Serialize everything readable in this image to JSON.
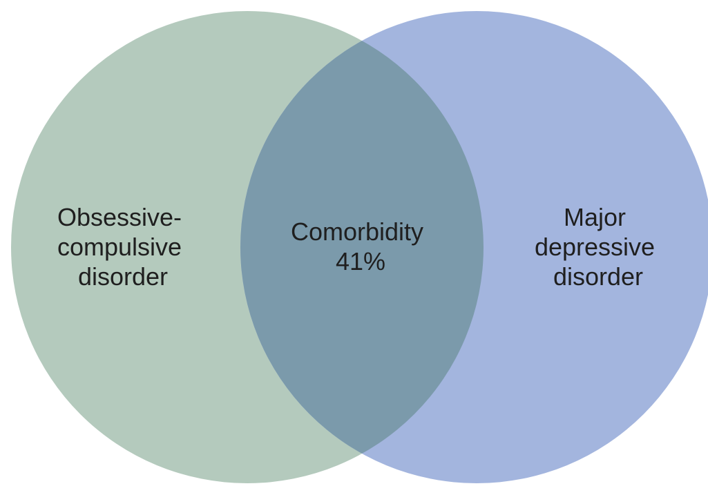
{
  "diagram": {
    "type": "venn",
    "sets": [
      {
        "id": "ocd",
        "label_lines": [
          "Obsessive-",
          "compulsive",
          "disorder"
        ],
        "color": "#b4cabd"
      },
      {
        "id": "mdd",
        "label_lines": [
          "Major",
          "depressive",
          "disorder"
        ],
        "color": "#a3b5de"
      }
    ],
    "intersection": {
      "label_lines": [
        "Comorbidity",
        "41%"
      ],
      "color": "#7b9aab"
    }
  }
}
